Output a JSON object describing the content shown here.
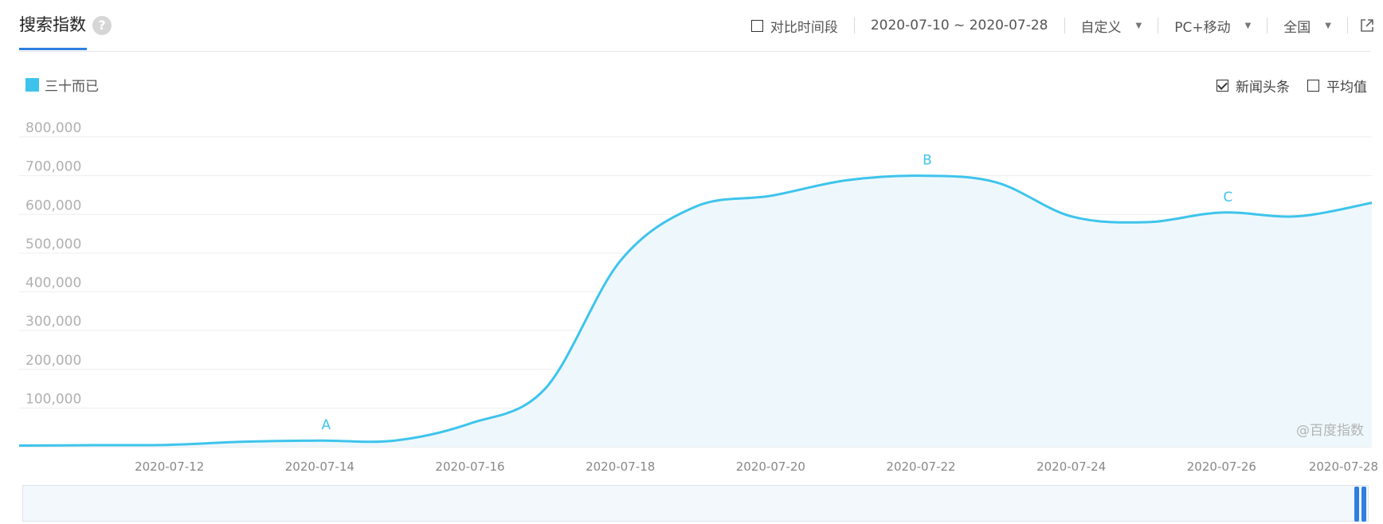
{
  "header": {
    "title": "搜索指数",
    "help_icon": "question-circle-icon",
    "compare_label": "对比时间段",
    "date_range": "2020-07-10 ~ 2020-07-28",
    "period_select": "自定义",
    "device_select": "PC+移动",
    "region_select": "全国",
    "export_icon": "external-link-icon"
  },
  "legend": {
    "series_name": "三十而已",
    "color": "#3ec4ec"
  },
  "options": {
    "news_label": "新闻头条",
    "news_checked": true,
    "avg_label": "平均值",
    "avg_checked": false
  },
  "watermark": "@百度指数",
  "chart_data": {
    "type": "area",
    "title": "",
    "xlabel": "",
    "ylabel": "",
    "x": [
      "2020-07-10",
      "2020-07-11",
      "2020-07-12",
      "2020-07-13",
      "2020-07-14",
      "2020-07-15",
      "2020-07-16",
      "2020-07-17",
      "2020-07-18",
      "2020-07-19",
      "2020-07-20",
      "2020-07-21",
      "2020-07-22",
      "2020-07-23",
      "2020-07-24",
      "2020-07-25",
      "2020-07-26",
      "2020-07-27",
      "2020-07-28"
    ],
    "series": [
      {
        "name": "三十而已",
        "values": [
          3000,
          4000,
          5000,
          13000,
          16000,
          16000,
          60000,
          150000,
          480000,
          620000,
          648000,
          688000,
          700000,
          683000,
          595000,
          580000,
          605000,
          595000,
          630000
        ]
      }
    ],
    "ylim": [
      0,
      800000
    ],
    "yticks": [
      "100,000",
      "200,000",
      "300,000",
      "400,000",
      "500,000",
      "600,000",
      "700,000",
      "800,000"
    ],
    "xtick_labels": [
      "2020-07-12",
      "2020-07-14",
      "2020-07-16",
      "2020-07-18",
      "2020-07-20",
      "2020-07-22",
      "2020-07-24",
      "2020-07-26",
      "2020-07-28"
    ],
    "grid": true,
    "annotations": [
      {
        "label": "A",
        "x": "2020-07-14"
      },
      {
        "label": "B",
        "x": "2020-07-22"
      },
      {
        "label": "C",
        "x": "2020-07-26"
      }
    ],
    "colors": {
      "line": "#3ec4ec",
      "fill": "#eef8fc",
      "grid": "#eeeeee",
      "axis_text": "#999999"
    }
  }
}
